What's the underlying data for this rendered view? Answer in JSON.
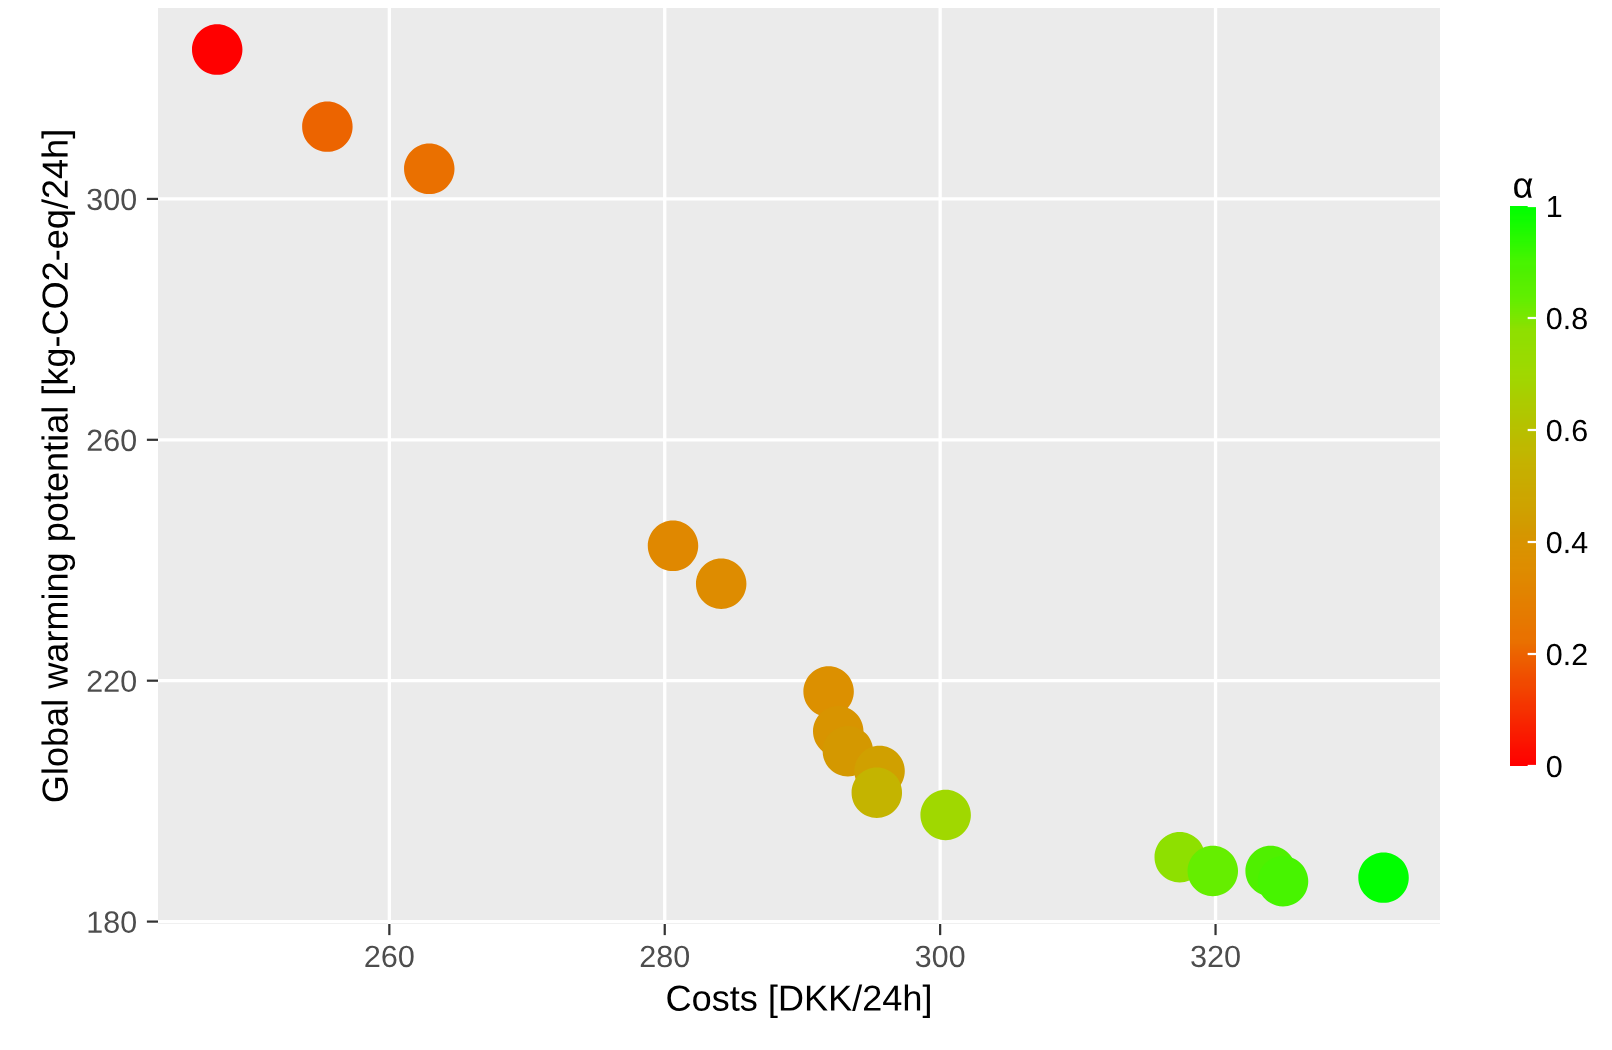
{
  "chart_data": {
    "type": "scatter",
    "xlabel": "Costs [DKK/24h]",
    "ylabel": "Global warming potential [kg-CO2-eq/24h]",
    "clabel": "α",
    "x": [
      247.5,
      255.5,
      262.9,
      280.6,
      284.1,
      291.9,
      292.6,
      293.3,
      295.6,
      295.4,
      300.4,
      317.4,
      319.8,
      324.0,
      324.9,
      332.2
    ],
    "values": [
      324.8,
      312,
      305,
      242.4,
      236.1,
      218.2,
      211.6,
      208.3,
      205,
      201.4,
      197.7,
      190.7,
      188.4,
      188.4,
      186.7,
      187.3
    ],
    "cvalues": [
      0,
      0.2,
      0.22,
      0.33,
      0.35,
      0.37,
      0.4,
      0.42,
      0.45,
      0.55,
      0.7,
      0.78,
      0.83,
      0.88,
      0.9,
      1
    ],
    "colors": [
      "#ff0000",
      "#ec6400",
      "#ea7000",
      "#e08800",
      "#de8c00",
      "#dc9000",
      "#d89400",
      "#d49800",
      "#d0a000",
      "#c4b400",
      "#a0d800",
      "#8ee000",
      "#66ee00",
      "#50f000",
      "#48f400",
      "#00ff00"
    ],
    "clim": [
      0,
      1
    ],
    "cticks": [
      0,
      0.2,
      0.4,
      0.6,
      0.8,
      1
    ],
    "xlim": [
      243.2,
      336.3
    ],
    "ylim": [
      179.6,
      331.7
    ],
    "xticks": [
      260,
      280,
      300,
      320
    ],
    "yticks": [
      180,
      220,
      260,
      300
    ],
    "grid": true,
    "marker": "circle"
  }
}
